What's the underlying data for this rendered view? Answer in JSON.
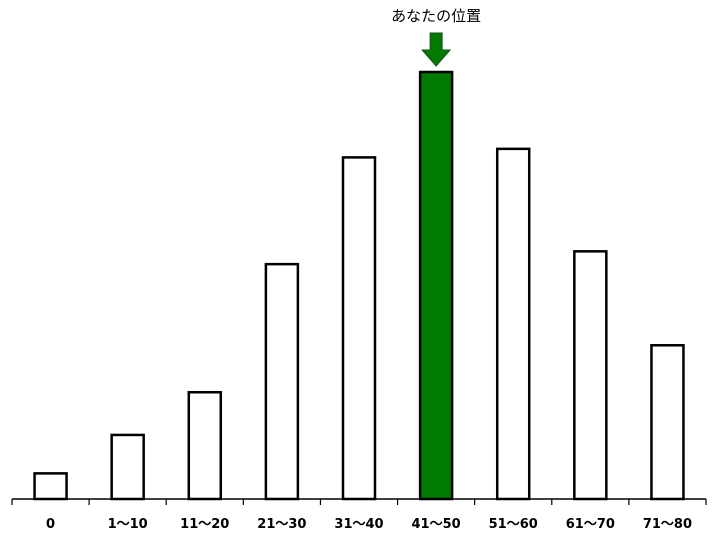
{
  "chart_data": {
    "type": "bar",
    "categories": [
      "0",
      "1〜10",
      "11〜20",
      "21〜30",
      "31〜40",
      "41〜50",
      "51〜60",
      "61〜70",
      "71〜80"
    ],
    "values": [
      6,
      15,
      25,
      55,
      80,
      100,
      82,
      58,
      36
    ],
    "ylim": [
      0,
      100
    ],
    "highlight_index": 5,
    "annotation": "あなたの位置",
    "colors": {
      "bar_fill": "#ffffff",
      "bar_stroke": "#000000",
      "highlight_fill": "#007a00",
      "arrow_fill": "#007a00"
    },
    "grid": false,
    "legend": "none"
  }
}
